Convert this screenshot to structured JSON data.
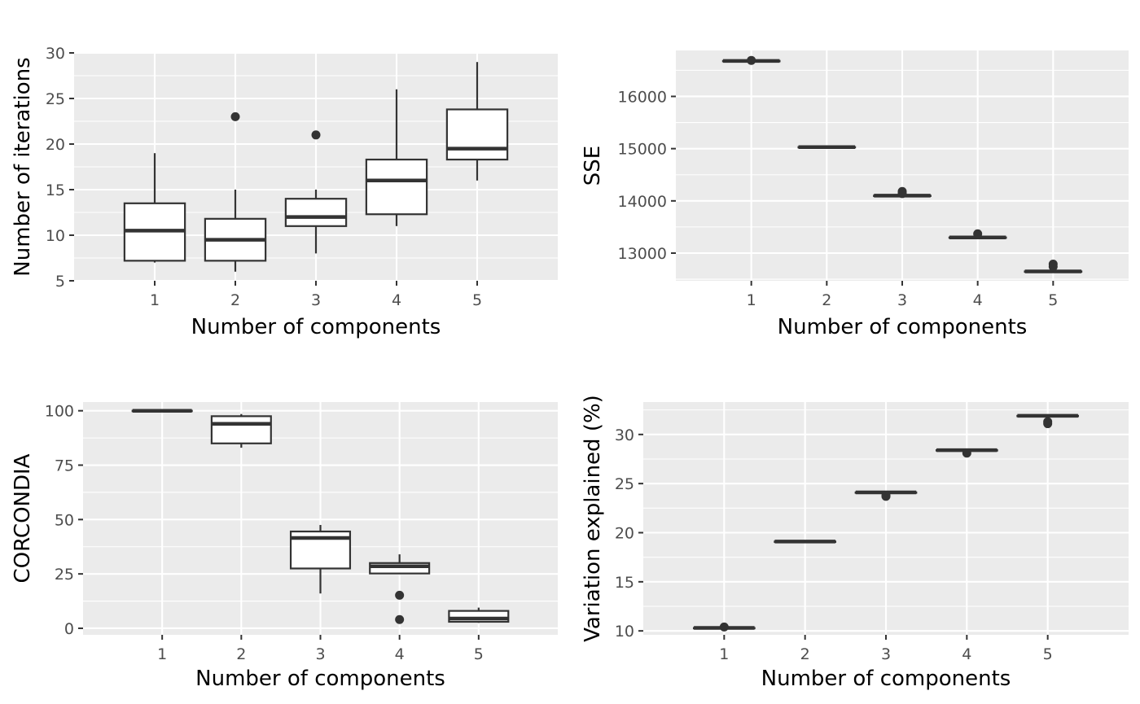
{
  "chart_data": [
    {
      "type": "boxplot",
      "xlabel": "Number of components",
      "ylabel": "Number of iterations",
      "categories": [
        "1",
        "2",
        "3",
        "4",
        "5"
      ],
      "ylim": [
        5,
        30
      ],
      "yticks": [
        5,
        10,
        15,
        20,
        25,
        30
      ],
      "boxes": [
        {
          "x": "1",
          "min": 7,
          "q1": 7.2,
          "median": 10.5,
          "q3": 13.5,
          "max": 19,
          "outliers": []
        },
        {
          "x": "2",
          "min": 6,
          "q1": 7.2,
          "median": 9.5,
          "q3": 11.8,
          "max": 15,
          "outliers": [
            23
          ]
        },
        {
          "x": "3",
          "min": 8,
          "q1": 11,
          "median": 12,
          "q3": 14,
          "max": 15,
          "outliers": [
            21
          ]
        },
        {
          "x": "4",
          "min": 11,
          "q1": 12.3,
          "median": 16,
          "q3": 18.3,
          "max": 26,
          "outliers": []
        },
        {
          "x": "5",
          "min": 16,
          "q1": 18.3,
          "median": 19.5,
          "q3": 23.8,
          "max": 29,
          "outliers": []
        }
      ]
    },
    {
      "type": "boxplot",
      "xlabel": "Number of components",
      "ylabel": "SSE",
      "categories": [
        "1",
        "2",
        "3",
        "4",
        "5"
      ],
      "ylim": [
        12470,
        16880
      ],
      "yticks": [
        13000,
        14000,
        15000,
        16000
      ],
      "boxes": [
        {
          "x": "1",
          "min": 16680,
          "q1": 16680,
          "median": 16680,
          "q3": 16680,
          "max": 16680,
          "outliers": [
            16690
          ]
        },
        {
          "x": "2",
          "min": 15030,
          "q1": 15030,
          "median": 15030,
          "q3": 15030,
          "max": 15030,
          "outliers": []
        },
        {
          "x": "3",
          "min": 14100,
          "q1": 14100,
          "median": 14100,
          "q3": 14100,
          "max": 14100,
          "outliers": [
            14180,
            14140
          ]
        },
        {
          "x": "4",
          "min": 13300,
          "q1": 13300,
          "median": 13300,
          "q3": 13300,
          "max": 13300,
          "outliers": [
            13370
          ]
        },
        {
          "x": "5",
          "min": 12650,
          "q1": 12650,
          "median": 12650,
          "q3": 12650,
          "max": 12650,
          "outliers": [
            12790,
            12740
          ]
        }
      ]
    },
    {
      "type": "boxplot",
      "xlabel": "Number of components",
      "ylabel": "CORCONDIA",
      "categories": [
        "1",
        "2",
        "3",
        "4",
        "5"
      ],
      "ylim": [
        -3,
        104
      ],
      "yticks": [
        0,
        25,
        50,
        75,
        100
      ],
      "boxes": [
        {
          "x": "1",
          "min": 100,
          "q1": 100,
          "median": 100,
          "q3": 100,
          "max": 100,
          "outliers": []
        },
        {
          "x": "2",
          "min": 83,
          "q1": 85,
          "median": 94,
          "q3": 97.5,
          "max": 98.5,
          "outliers": []
        },
        {
          "x": "3",
          "min": 16,
          "q1": 27.5,
          "median": 41.5,
          "q3": 44.5,
          "max": 47.5,
          "outliers": []
        },
        {
          "x": "4",
          "min": 25,
          "q1": 25.2,
          "median": 28.5,
          "q3": 30,
          "max": 34,
          "outliers": [
            15.2,
            4
          ]
        },
        {
          "x": "5",
          "min": 2.5,
          "q1": 3,
          "median": 4.5,
          "q3": 8,
          "max": 9.5,
          "outliers": []
        }
      ]
    },
    {
      "type": "boxplot",
      "xlabel": "Number of components",
      "ylabel": "Variation explained (%)",
      "categories": [
        "1",
        "2",
        "3",
        "4",
        "5"
      ],
      "ylim": [
        9.6,
        33.3
      ],
      "yticks": [
        10,
        15,
        20,
        25,
        30
      ],
      "boxes": [
        {
          "x": "1",
          "min": 10.3,
          "q1": 10.3,
          "median": 10.3,
          "q3": 10.3,
          "max": 10.3,
          "outliers": [
            10.4
          ]
        },
        {
          "x": "2",
          "min": 19.1,
          "q1": 19.1,
          "median": 19.1,
          "q3": 19.1,
          "max": 19.1,
          "outliers": []
        },
        {
          "x": "3",
          "min": 24.1,
          "q1": 24.1,
          "median": 24.1,
          "q3": 24.1,
          "max": 24.1,
          "outliers": [
            23.8,
            23.7
          ]
        },
        {
          "x": "4",
          "min": 28.4,
          "q1": 28.4,
          "median": 28.4,
          "q3": 28.4,
          "max": 28.4,
          "outliers": [
            28.1
          ]
        },
        {
          "x": "5",
          "min": 31.9,
          "q1": 31.9,
          "median": 31.9,
          "q3": 31.9,
          "max": 31.9,
          "outliers": [
            31.3,
            31.1
          ]
        }
      ]
    }
  ]
}
